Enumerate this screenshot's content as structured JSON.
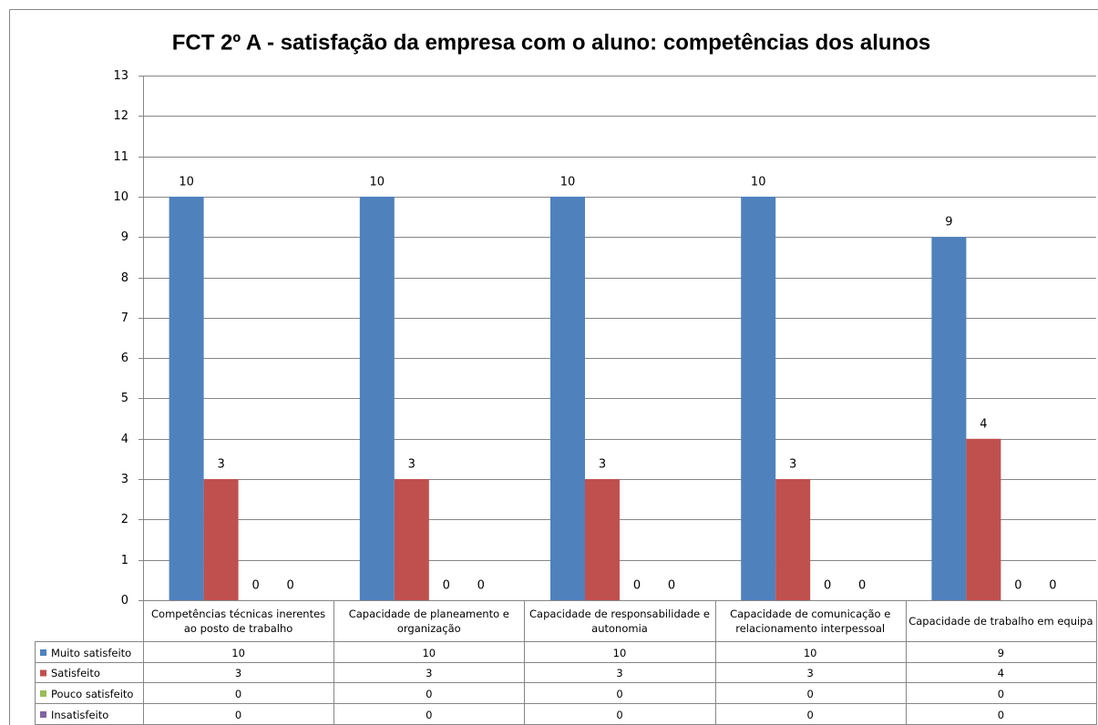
{
  "chart_data": {
    "type": "bar",
    "title": "FCT 2º A - satisfação da empresa com o aluno: competências dos alunos",
    "categories": [
      "Competências técnicas inerentes ao posto de trabalho",
      "Capacidade de planeamento e organização",
      "Capacidade de responsabilidade e autonomia",
      "Capacidade de comunicação e relacionamento interpessoal",
      "Capacidade de trabalho em equipa"
    ],
    "series": [
      {
        "name": "Muito satisfeito",
        "color": "#4f81bd",
        "values": [
          10,
          10,
          10,
          10,
          9
        ]
      },
      {
        "name": "Satisfeito",
        "color": "#c0504d",
        "values": [
          3,
          3,
          3,
          3,
          4
        ]
      },
      {
        "name": "Pouco satisfeito",
        "color": "#9bbb59",
        "values": [
          0,
          0,
          0,
          0,
          0
        ]
      },
      {
        "name": "Insatisfeito",
        "color": "#8064a2",
        "values": [
          0,
          0,
          0,
          0,
          0
        ]
      }
    ],
    "ylim": [
      0,
      13
    ],
    "yticks": [
      0,
      1,
      2,
      3,
      4,
      5,
      6,
      7,
      8,
      9,
      10,
      11,
      12,
      13
    ],
    "grid": true
  }
}
